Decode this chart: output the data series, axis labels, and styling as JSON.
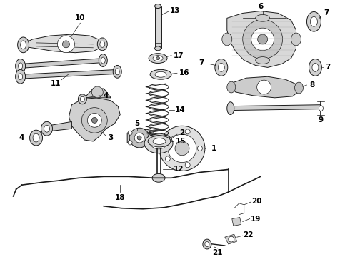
{
  "background_color": "#ffffff",
  "line_color": "#1a1a1a",
  "figsize": [
    4.9,
    3.6
  ],
  "dpi": 100,
  "label_fontsize": 7.5
}
